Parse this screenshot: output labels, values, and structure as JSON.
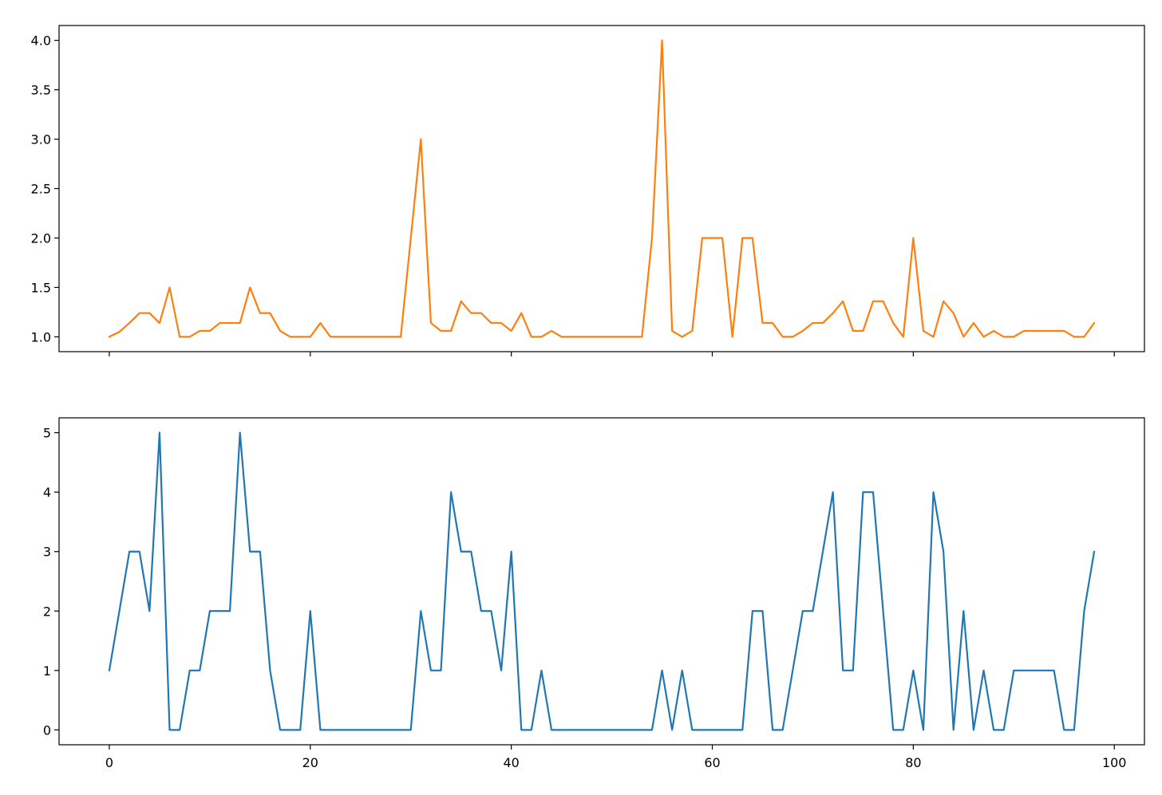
{
  "chart_data": [
    {
      "type": "line",
      "title": "",
      "xlabel": "",
      "ylabel": "",
      "xlim": [
        -5,
        103
      ],
      "ylim": [
        0.85,
        4.15
      ],
      "grid": false,
      "xtick_values": [
        0,
        20,
        40,
        60,
        80,
        100
      ],
      "xtick_labels_shown": false,
      "yticks": [
        1.0,
        1.5,
        2.0,
        2.5,
        3.0,
        3.5,
        4.0
      ],
      "ytick_labels": [
        "1.0",
        "1.5",
        "2.0",
        "2.5",
        "3.0",
        "3.5",
        "4.0"
      ],
      "series": [
        {
          "color": "#ff7f0e",
          "x_start": 0,
          "values": [
            1.0,
            1.05,
            1.14,
            1.24,
            1.24,
            1.14,
            1.5,
            1.0,
            1.0,
            1.06,
            1.06,
            1.14,
            1.14,
            1.14,
            1.5,
            1.24,
            1.24,
            1.06,
            1.0,
            1.0,
            1.0,
            1.14,
            1.0,
            1.0,
            1.0,
            1.0,
            1.0,
            1.0,
            1.0,
            1.0,
            2.0,
            3.0,
            1.14,
            1.06,
            1.06,
            1.36,
            1.24,
            1.24,
            1.14,
            1.14,
            1.06,
            1.24,
            1.0,
            1.0,
            1.06,
            1.0,
            1.0,
            1.0,
            1.0,
            1.0,
            1.0,
            1.0,
            1.0,
            1.0,
            2.0,
            4.0,
            1.06,
            1.0,
            1.06,
            2.0,
            2.0,
            2.0,
            1.0,
            2.0,
            2.0,
            1.14,
            1.14,
            1.0,
            1.0,
            1.06,
            1.14,
            1.14,
            1.24,
            1.36,
            1.06,
            1.06,
            1.36,
            1.36,
            1.14,
            1.0,
            2.0,
            1.06,
            1.0,
            1.36,
            1.24,
            1.0,
            1.14,
            1.0,
            1.06,
            1.0,
            1.0,
            1.06,
            1.06,
            1.06,
            1.06,
            1.06,
            1.0,
            1.0,
            1.14
          ]
        }
      ]
    },
    {
      "type": "line",
      "title": "",
      "xlabel": "",
      "ylabel": "",
      "xlim": [
        -5,
        103
      ],
      "ylim": [
        -0.25,
        5.25
      ],
      "grid": false,
      "xticks": [
        0,
        20,
        40,
        60,
        80,
        100
      ],
      "xtick_labels": [
        "0",
        "20",
        "40",
        "60",
        "80",
        "100"
      ],
      "yticks": [
        0,
        1,
        2,
        3,
        4,
        5
      ],
      "ytick_labels": [
        "0",
        "1",
        "2",
        "3",
        "4",
        "5"
      ],
      "series": [
        {
          "color": "#1f77b4",
          "x_start": 0,
          "values": [
            1,
            2,
            3,
            3,
            2,
            5,
            0,
            0,
            1,
            1,
            2,
            2,
            2,
            5,
            3,
            3,
            1,
            0,
            0,
            0,
            2,
            0,
            0,
            0,
            0,
            0,
            0,
            0,
            0,
            0,
            0,
            2,
            1,
            1,
            4,
            3,
            3,
            2,
            2,
            1,
            3,
            0,
            0,
            1,
            0,
            0,
            0,
            0,
            0,
            0,
            0,
            0,
            0,
            0,
            0,
            1,
            0,
            1,
            0,
            0,
            0,
            0,
            0,
            0,
            2,
            2,
            0,
            0,
            1,
            2,
            2,
            3,
            4,
            1,
            1,
            4,
            4,
            2,
            0,
            0,
            1,
            0,
            4,
            3,
            0,
            2,
            0,
            1,
            0,
            0,
            1,
            1,
            1,
            1,
            1,
            0,
            0,
            2,
            3
          ]
        }
      ]
    }
  ]
}
